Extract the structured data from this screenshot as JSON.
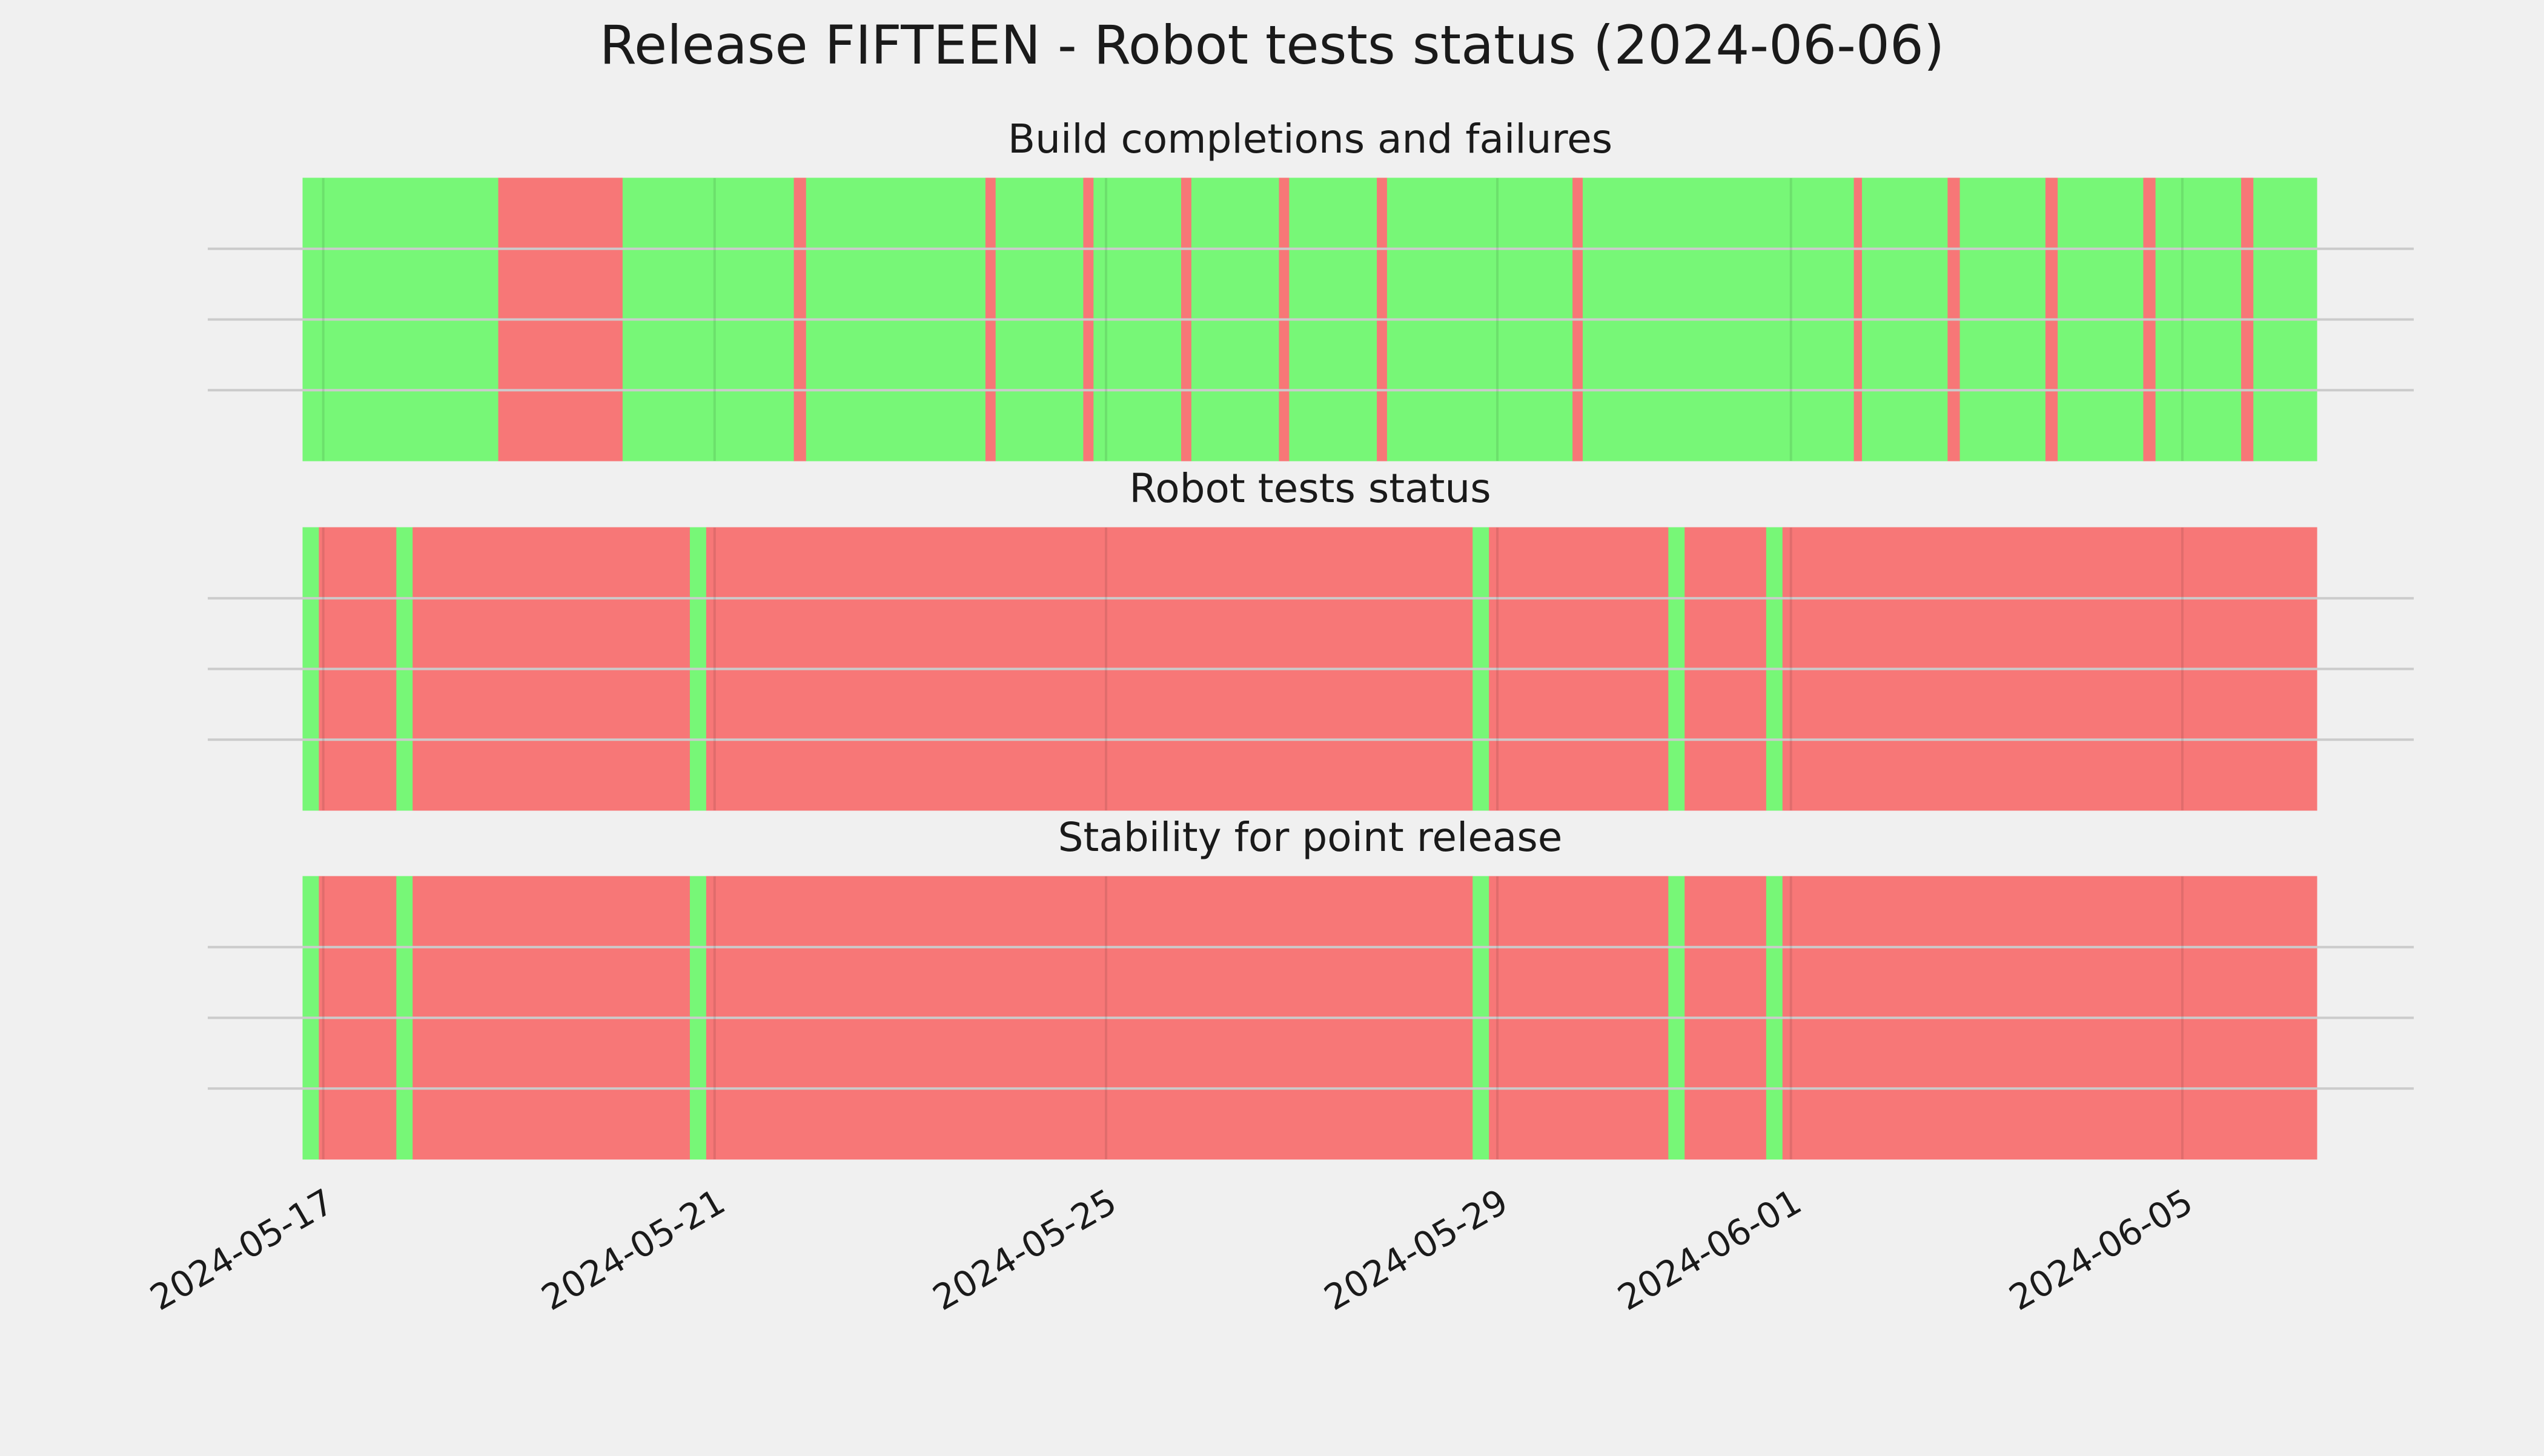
{
  "figure": {
    "title": "Release FIFTEEN - Robot tests status (2024-06-06)",
    "background": "#f0f0f0",
    "colors": {
      "pass": "#77f777",
      "fail": "#f77777",
      "grid": "#cbcbcb"
    }
  },
  "chart_data": {
    "type": "timeline",
    "x_axis": {
      "type": "date",
      "range": [
        "2024-05-16T19:00",
        "2024-06-06T09:00"
      ],
      "ticks": [
        "2024-05-17",
        "2024-05-21",
        "2024-05-25",
        "2024-05-29",
        "2024-06-01",
        "2024-06-05"
      ],
      "tick_rotation": 30
    },
    "y_ticks_labeled": false,
    "grid": true,
    "panels": [
      {
        "title": "Build completions and failures",
        "segments": [
          {
            "start": "2024-05-16T19:00",
            "end": "2024-05-18T19:00",
            "status": "pass"
          },
          {
            "start": "2024-05-18T19:00",
            "end": "2024-05-20T01:30",
            "status": "fail"
          },
          {
            "start": "2024-05-20T01:30",
            "end": "2024-05-21T19:30",
            "status": "pass"
          },
          {
            "start": "2024-05-21T19:30",
            "end": "2024-05-21T22:30",
            "status": "fail"
          },
          {
            "start": "2024-05-21T22:30",
            "end": "2024-05-23T18:30",
            "status": "pass"
          },
          {
            "start": "2024-05-23T18:30",
            "end": "2024-05-23T21:00",
            "status": "fail"
          },
          {
            "start": "2024-05-23T21:00",
            "end": "2024-05-24T18:30",
            "status": "pass"
          },
          {
            "start": "2024-05-24T18:30",
            "end": "2024-05-24T21:00",
            "status": "fail"
          },
          {
            "start": "2024-05-24T21:00",
            "end": "2024-05-25T18:30",
            "status": "pass"
          },
          {
            "start": "2024-05-25T18:30",
            "end": "2024-05-25T21:00",
            "status": "fail"
          },
          {
            "start": "2024-05-25T21:00",
            "end": "2024-05-26T18:30",
            "status": "pass"
          },
          {
            "start": "2024-05-26T18:30",
            "end": "2024-05-26T21:00",
            "status": "fail"
          },
          {
            "start": "2024-05-26T21:00",
            "end": "2024-05-27T18:30",
            "status": "pass"
          },
          {
            "start": "2024-05-27T18:30",
            "end": "2024-05-27T21:00",
            "status": "fail"
          },
          {
            "start": "2024-05-27T21:00",
            "end": "2024-05-29T18:30",
            "status": "pass"
          },
          {
            "start": "2024-05-29T18:30",
            "end": "2024-05-29T21:00",
            "status": "fail"
          },
          {
            "start": "2024-05-29T21:00",
            "end": "2024-06-01T15:30",
            "status": "pass"
          },
          {
            "start": "2024-06-01T15:30",
            "end": "2024-06-01T17:30",
            "status": "fail"
          },
          {
            "start": "2024-06-01T17:30",
            "end": "2024-06-02T14:30",
            "status": "pass"
          },
          {
            "start": "2024-06-02T14:30",
            "end": "2024-06-02T17:30",
            "status": "fail"
          },
          {
            "start": "2024-06-02T17:30",
            "end": "2024-06-03T14:30",
            "status": "pass"
          },
          {
            "start": "2024-06-03T14:30",
            "end": "2024-06-03T17:30",
            "status": "fail"
          },
          {
            "start": "2024-06-03T17:30",
            "end": "2024-06-04T14:30",
            "status": "pass"
          },
          {
            "start": "2024-06-04T14:30",
            "end": "2024-06-04T17:30",
            "status": "fail"
          },
          {
            "start": "2024-06-04T17:30",
            "end": "2024-06-05T14:30",
            "status": "pass"
          },
          {
            "start": "2024-06-05T14:30",
            "end": "2024-06-05T17:30",
            "status": "fail"
          },
          {
            "start": "2024-06-05T17:30",
            "end": "2024-06-06T09:00",
            "status": "pass"
          }
        ]
      },
      {
        "title": "Robot tests status",
        "segments": [
          {
            "start": "2024-05-16T19:00",
            "end": "2024-05-16T23:00",
            "status": "pass"
          },
          {
            "start": "2024-05-16T23:00",
            "end": "2024-05-17T18:00",
            "status": "fail"
          },
          {
            "start": "2024-05-17T18:00",
            "end": "2024-05-17T22:00",
            "status": "pass"
          },
          {
            "start": "2024-05-17T22:00",
            "end": "2024-05-20T18:00",
            "status": "fail"
          },
          {
            "start": "2024-05-20T18:00",
            "end": "2024-05-20T22:00",
            "status": "pass"
          },
          {
            "start": "2024-05-20T22:00",
            "end": "2024-05-28T18:00",
            "status": "fail"
          },
          {
            "start": "2024-05-28T18:00",
            "end": "2024-05-28T22:00",
            "status": "pass"
          },
          {
            "start": "2024-05-28T22:00",
            "end": "2024-05-30T18:00",
            "status": "fail"
          },
          {
            "start": "2024-05-30T18:00",
            "end": "2024-05-30T22:00",
            "status": "pass"
          },
          {
            "start": "2024-05-30T22:00",
            "end": "2024-05-31T18:00",
            "status": "fail"
          },
          {
            "start": "2024-05-31T18:00",
            "end": "2024-05-31T22:00",
            "status": "pass"
          },
          {
            "start": "2024-05-31T22:00",
            "end": "2024-06-06T09:00",
            "status": "fail"
          }
        ]
      },
      {
        "title": "Stability for point release",
        "segments": [
          {
            "start": "2024-05-16T19:00",
            "end": "2024-05-16T23:00",
            "status": "pass"
          },
          {
            "start": "2024-05-16T23:00",
            "end": "2024-05-17T18:00",
            "status": "fail"
          },
          {
            "start": "2024-05-17T18:00",
            "end": "2024-05-17T22:00",
            "status": "pass"
          },
          {
            "start": "2024-05-17T22:00",
            "end": "2024-05-20T18:00",
            "status": "fail"
          },
          {
            "start": "2024-05-20T18:00",
            "end": "2024-05-20T22:00",
            "status": "pass"
          },
          {
            "start": "2024-05-20T22:00",
            "end": "2024-05-28T18:00",
            "status": "fail"
          },
          {
            "start": "2024-05-28T18:00",
            "end": "2024-05-28T22:00",
            "status": "pass"
          },
          {
            "start": "2024-05-28T22:00",
            "end": "2024-05-30T18:00",
            "status": "fail"
          },
          {
            "start": "2024-05-30T18:00",
            "end": "2024-05-30T22:00",
            "status": "pass"
          },
          {
            "start": "2024-05-30T22:00",
            "end": "2024-05-31T18:00",
            "status": "fail"
          },
          {
            "start": "2024-05-31T18:00",
            "end": "2024-05-31T22:00",
            "status": "pass"
          },
          {
            "start": "2024-05-31T22:00",
            "end": "2024-06-06T09:00",
            "status": "fail"
          }
        ]
      }
    ]
  }
}
